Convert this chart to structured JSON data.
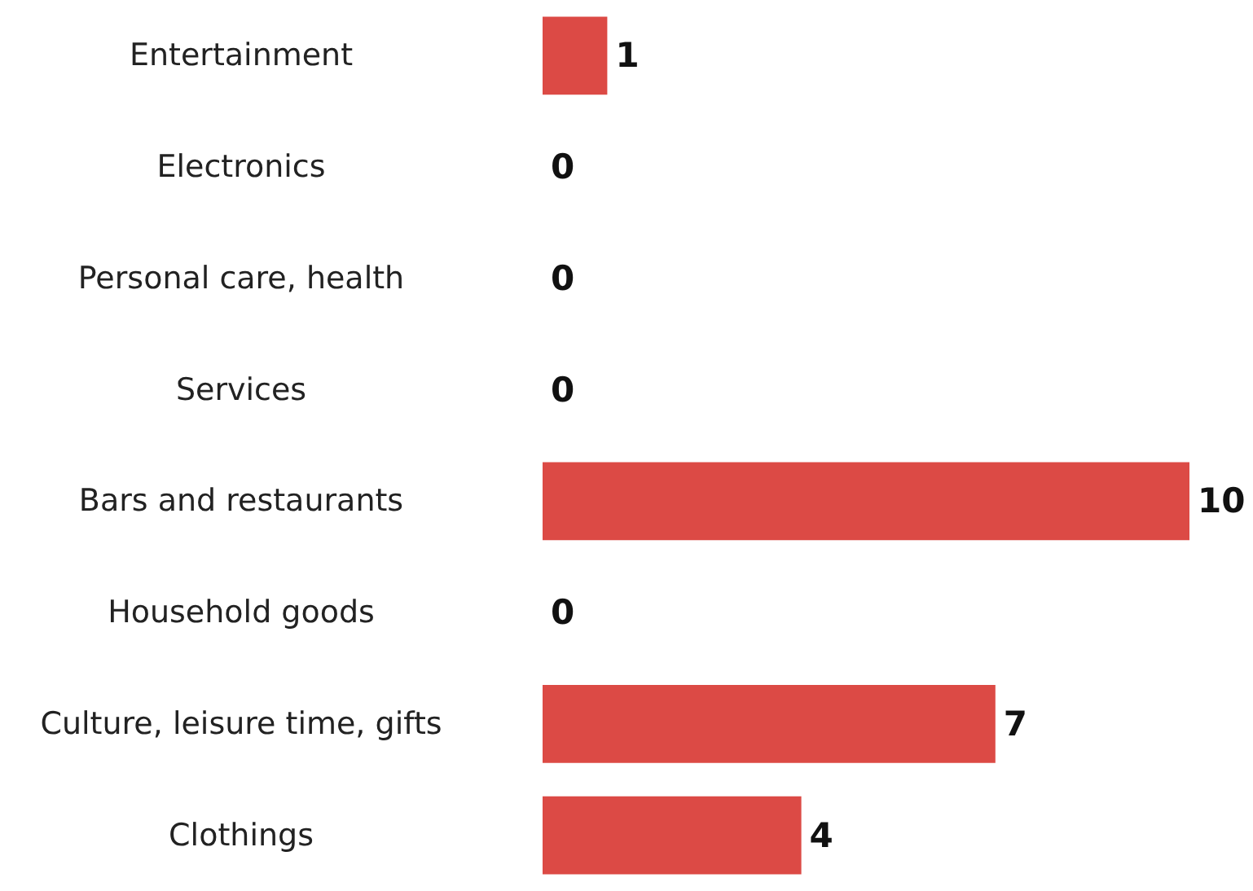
{
  "chart_data": {
    "type": "bar",
    "orientation": "horizontal",
    "categories": [
      "Entertainment",
      "Electronics",
      "Personal care, health",
      "Services",
      "Bars and restaurants",
      "Household goods",
      "Culture, leisure time, gifts",
      "Clothings"
    ],
    "values": [
      1,
      0,
      0,
      0,
      10,
      0,
      7,
      4
    ],
    "color": "#dc4a45",
    "data_labels": true
  }
}
